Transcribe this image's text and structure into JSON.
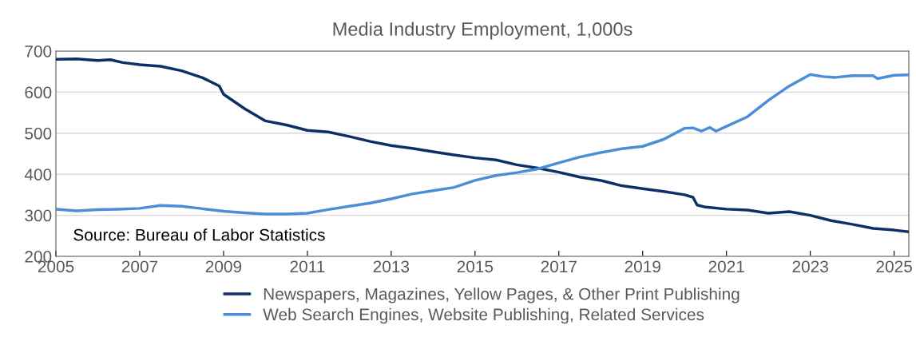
{
  "chart_data": {
    "type": "line",
    "title": "Media Industry Employment, 1,000s",
    "annotations": [
      "Source: Bureau of Labor Statistics"
    ],
    "xlim": [
      2005,
      2025.35
    ],
    "xticks": [
      2005,
      2007,
      2009,
      2011,
      2013,
      2015,
      2017,
      2019,
      2021,
      2023,
      2025
    ],
    "ylim": [
      200,
      700
    ],
    "yticks": [
      200,
      300,
      400,
      500,
      600,
      700
    ],
    "grid": "y",
    "legend": "bottom",
    "marker": "none",
    "line_style": "solid",
    "series": [
      {
        "name": "Newspapers, Magazines, Yellow Pages, & Other Print Publishing",
        "color": "#0e2f66",
        "x": [
          2005,
          2005.5,
          2006,
          2006.3,
          2006.6,
          2007,
          2007.5,
          2008,
          2008.5,
          2008.9,
          2009,
          2009.5,
          2010,
          2010.5,
          2011,
          2011.5,
          2012,
          2012.5,
          2013,
          2013.5,
          2014,
          2014.5,
          2015,
          2015.5,
          2016,
          2016.5,
          2017,
          2017.5,
          2018,
          2018.5,
          2019,
          2019.5,
          2020,
          2020.2,
          2020.3,
          2020.5,
          2021,
          2021.5,
          2022,
          2022.5,
          2023,
          2023.5,
          2024,
          2024.5,
          2025,
          2025.33
        ],
        "values": [
          680,
          681,
          677,
          679,
          672,
          667,
          663,
          652,
          635,
          615,
          595,
          560,
          530,
          520,
          507,
          503,
          492,
          480,
          470,
          463,
          455,
          447,
          440,
          435,
          423,
          415,
          405,
          393,
          385,
          372,
          365,
          358,
          350,
          344,
          325,
          320,
          315,
          313,
          305,
          309,
          300,
          287,
          278,
          268,
          264,
          260
        ]
      },
      {
        "name": "Web Search Engines, Website Publishing, Related Services",
        "color": "#4a8fd6",
        "x": [
          2005,
          2005.5,
          2006,
          2006.5,
          2007,
          2007.5,
          2008,
          2008.5,
          2009,
          2009.5,
          2010,
          2010.5,
          2011,
          2011.5,
          2012,
          2012.5,
          2013,
          2013.5,
          2014,
          2014.5,
          2015,
          2015.5,
          2016,
          2016.5,
          2017,
          2017.5,
          2018,
          2018.5,
          2019,
          2019.5,
          2020,
          2020.2,
          2020.4,
          2020.6,
          2020.75,
          2021,
          2021.5,
          2022,
          2022.5,
          2023,
          2023.3,
          2023.6,
          2024,
          2024.5,
          2024.6,
          2025,
          2025.33
        ],
        "values": [
          315,
          311,
          314,
          315,
          317,
          324,
          322,
          316,
          310,
          306,
          303,
          303,
          305,
          314,
          322,
          330,
          340,
          352,
          360,
          368,
          385,
          397,
          404,
          413,
          428,
          442,
          453,
          462,
          468,
          485,
          512,
          513,
          505,
          514,
          505,
          517,
          540,
          580,
          615,
          643,
          638,
          636,
          640,
          640,
          633,
          641,
          642
        ]
      }
    ]
  }
}
